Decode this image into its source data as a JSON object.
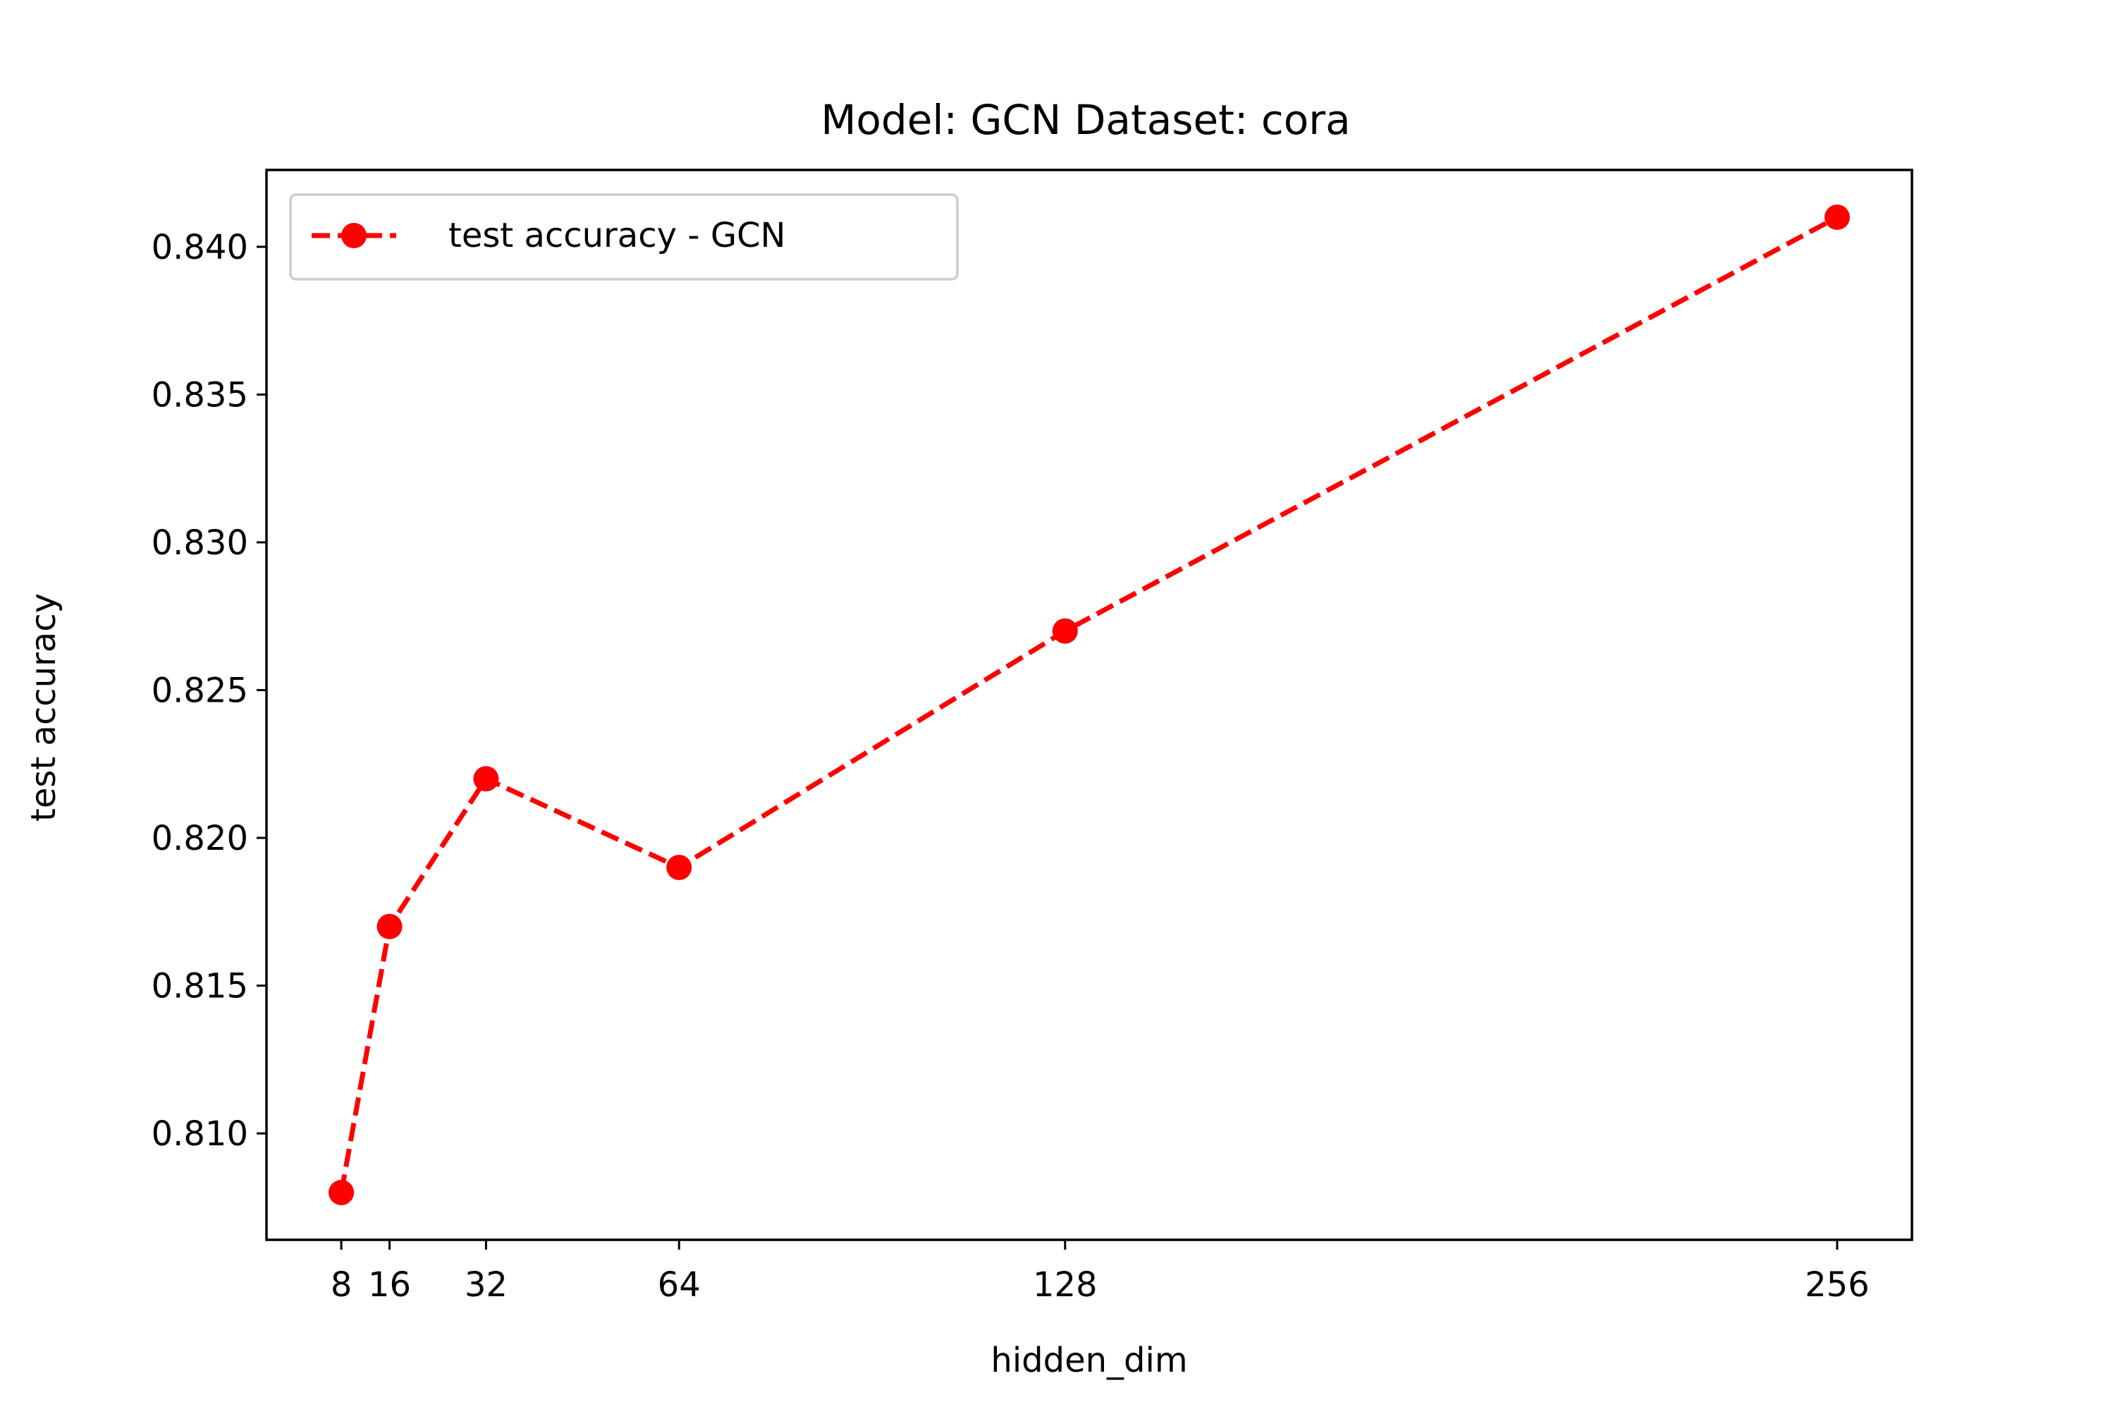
{
  "chart_data": {
    "type": "line",
    "title": "Model: GCN Dataset: cora",
    "xlabel": "hidden_dim",
    "ylabel": "test accuracy",
    "x": [
      8,
      16,
      32,
      64,
      128,
      256
    ],
    "x_tick_labels": [
      "8",
      "16",
      "32",
      "64",
      "128",
      "256"
    ],
    "y_ticks": [
      0.81,
      0.815,
      0.82,
      0.825,
      0.83,
      0.835,
      0.84
    ],
    "y_tick_labels": [
      "0.810",
      "0.815",
      "0.820",
      "0.825",
      "0.830",
      "0.835",
      "0.840"
    ],
    "xlim": [
      -4.4,
      268.4
    ],
    "ylim": [
      0.8064,
      0.8426
    ],
    "series": [
      {
        "name": "test accuracy - GCN",
        "values": [
          0.808,
          0.817,
          0.822,
          0.819,
          0.827,
          0.841
        ],
        "color": "#ff0000",
        "line_style": "dashed",
        "marker": "circle"
      }
    ],
    "legend_position": "upper-left",
    "grid": false
  }
}
